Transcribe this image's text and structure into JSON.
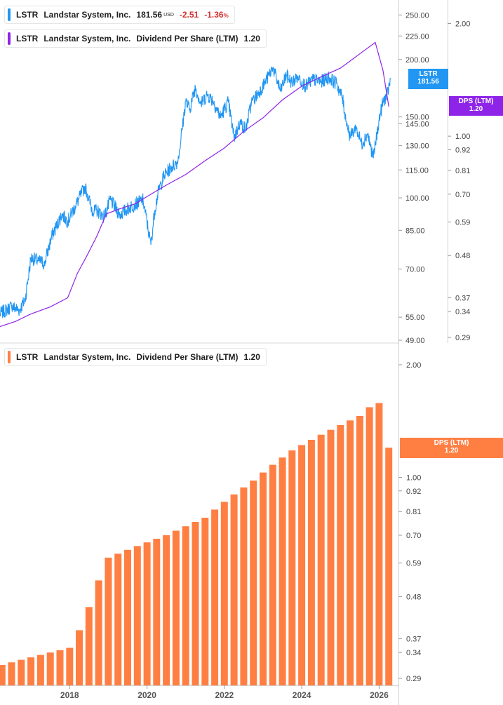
{
  "legend_price": {
    "ticker": "LSTR",
    "company": "Landstar System, Inc.",
    "price": "181.56",
    "currency": "USD",
    "change": "-2.51",
    "change_pct": "-1.36",
    "pct_symbol": "%",
    "color": "#2196f3"
  },
  "legend_dps_top": {
    "ticker": "LSTR",
    "company": "Landstar System, Inc.",
    "metric": "Dividend Per Share (LTM)",
    "value": "1.20",
    "color": "#8e24e8"
  },
  "legend_dps_bottom": {
    "ticker": "LSTR",
    "company": "Landstar System, Inc.",
    "metric": "Dividend Per Share (LTM)",
    "value": "1.20",
    "color": "#ff7f43"
  },
  "tags": {
    "price_tag_ticker": "LSTR",
    "price_tag_value": "181.56",
    "dps_tag_label": "DPS (LTM)",
    "dps_tag_value": "1.20",
    "dps_bottom_tag_label": "DPS (LTM)",
    "dps_bottom_tag_value": "1.20"
  },
  "chart_data": [
    {
      "type": "line",
      "title": "",
      "xlabel": "",
      "ylabel": "",
      "scale": "log",
      "x_range": [
        2016.2,
        2026.5
      ],
      "y_left_ticks": [
        "250.00",
        "225.00",
        "200.00",
        "150.00",
        "145.00",
        "130.00",
        "115.00",
        "100.00",
        "85.00",
        "70.00",
        "55.00",
        "49.00"
      ],
      "y_right_ticks": [
        "2.00",
        "1.00",
        "0.92",
        "0.81",
        "0.70",
        "0.59",
        "0.48",
        "0.37",
        "0.34",
        "0.29"
      ],
      "series": [
        {
          "name": "LSTR",
          "axis": "left",
          "color": "#2196f3",
          "x": [
            2016.2,
            2016.5,
            2016.7,
            2016.85,
            2017.0,
            2017.2,
            2017.35,
            2017.55,
            2017.8,
            2017.95,
            2018.15,
            2018.4,
            2018.6,
            2018.7,
            2018.9,
            2019.05,
            2019.3,
            2019.6,
            2019.9,
            2020.1,
            2020.2,
            2020.3,
            2020.45,
            2020.6,
            2020.8,
            2021.0,
            2021.1,
            2021.25,
            2021.4,
            2021.55,
            2021.7,
            2021.9,
            2022.1,
            2022.25,
            2022.4,
            2022.55,
            2022.7,
            2022.9,
            2023.1,
            2023.25,
            2023.45,
            2023.6,
            2023.75,
            2023.9,
            2024.1,
            2024.3,
            2024.5,
            2024.7,
            2024.9,
            2025.05,
            2025.15,
            2025.25,
            2025.4,
            2025.55,
            2025.7,
            2025.85,
            2026.0,
            2026.1,
            2026.2,
            2026.3
          ],
          "y": [
            56,
            58,
            57,
            60,
            74,
            73,
            72,
            83,
            92,
            89,
            96,
            106,
            93,
            94,
            91,
            99,
            92,
            96,
            99,
            79,
            94,
            104,
            112,
            116,
            120,
            162,
            156,
            174,
            160,
            168,
            163,
            150,
            162,
            135,
            146,
            141,
            161,
            170,
            181,
            192,
            171,
            185,
            178,
            184,
            175,
            181,
            179,
            183,
            177,
            165,
            147,
            136,
            142,
            131,
            138,
            122,
            148,
            162,
            167,
            181.56
          ]
        },
        {
          "name": "DPS (LTM)",
          "axis": "right",
          "color": "#8e24e8",
          "x": [
            2016.2,
            2016.6,
            2017.0,
            2017.5,
            2017.95,
            2018.2,
            2018.45,
            2018.7,
            2018.95,
            2019.3,
            2019.7,
            2020.0,
            2020.5,
            2021.0,
            2021.5,
            2022.0,
            2022.5,
            2023.0,
            2023.5,
            2024.0,
            2024.5,
            2025.0,
            2025.5,
            2025.9,
            2026.1,
            2026.25
          ],
          "y": [
            0.31,
            0.32,
            0.335,
            0.35,
            0.37,
            0.43,
            0.48,
            0.54,
            0.62,
            0.64,
            0.66,
            0.69,
            0.74,
            0.79,
            0.86,
            0.93,
            1.03,
            1.12,
            1.25,
            1.36,
            1.44,
            1.52,
            1.66,
            1.78,
            1.5,
            1.2
          ]
        }
      ]
    },
    {
      "type": "bar",
      "title": "",
      "xlabel": "",
      "ylabel": "",
      "scale": "log",
      "series_name": "DPS (LTM)",
      "color": "#ff7f43",
      "y_right_ticks": [
        "2.00",
        "1.00",
        "0.92",
        "0.81",
        "0.70",
        "0.59",
        "0.48",
        "0.37",
        "0.34",
        "0.29"
      ],
      "x_tick_labels": [
        "2018",
        "2020",
        "2022",
        "2024",
        "2026"
      ],
      "x_tick_years": [
        2018,
        2020,
        2022,
        2024,
        2026
      ],
      "x_range": [
        2016.2,
        2026.5
      ],
      "bar_x": [
        2016.25,
        2016.5,
        2016.75,
        2017.0,
        2017.25,
        2017.5,
        2017.75,
        2018.0,
        2018.25,
        2018.5,
        2018.75,
        2019.0,
        2019.25,
        2019.5,
        2019.75,
        2020.0,
        2020.25,
        2020.5,
        2020.75,
        2021.0,
        2021.25,
        2021.5,
        2021.75,
        2022.0,
        2022.25,
        2022.5,
        2022.75,
        2023.0,
        2023.25,
        2023.5,
        2023.75,
        2024.0,
        2024.25,
        2024.5,
        2024.75,
        2025.0,
        2025.25,
        2025.5,
        2025.75,
        2026.0,
        2026.25
      ],
      "values": [
        0.315,
        0.32,
        0.325,
        0.33,
        0.335,
        0.34,
        0.345,
        0.35,
        0.39,
        0.45,
        0.53,
        0.61,
        0.625,
        0.64,
        0.655,
        0.67,
        0.685,
        0.7,
        0.72,
        0.74,
        0.76,
        0.78,
        0.82,
        0.86,
        0.9,
        0.94,
        0.98,
        1.03,
        1.08,
        1.13,
        1.18,
        1.22,
        1.26,
        1.3,
        1.34,
        1.38,
        1.42,
        1.46,
        1.54,
        1.58,
        1.2
      ]
    }
  ]
}
